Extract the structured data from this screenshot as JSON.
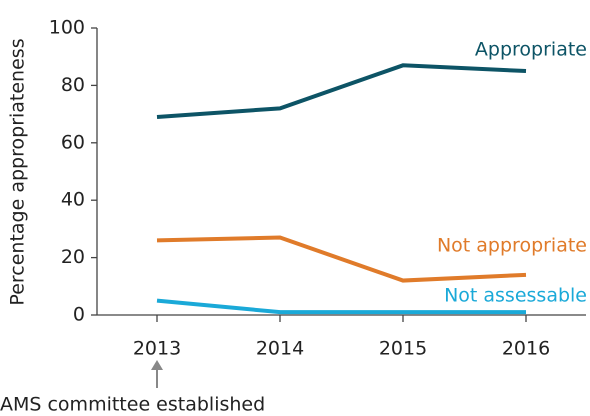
{
  "chart_data": {
    "type": "line",
    "categories": [
      "2013",
      "2014",
      "2015",
      "2016"
    ],
    "series": [
      {
        "name": "Appropriate",
        "color": "#0d5466",
        "values": [
          69,
          72,
          87,
          85
        ]
      },
      {
        "name": "Not appropriate",
        "color": "#e07b2a",
        "values": [
          26,
          27,
          12,
          14
        ]
      },
      {
        "name": "Not assessable",
        "color": "#1aa9d8",
        "values": [
          5,
          1,
          1,
          1
        ]
      }
    ],
    "ylabel": "Percentage appropriateness",
    "ylim": [
      0,
      100
    ],
    "yticks": [
      0,
      20,
      40,
      60,
      80,
      100
    ],
    "annotation": "AMS committee established"
  }
}
